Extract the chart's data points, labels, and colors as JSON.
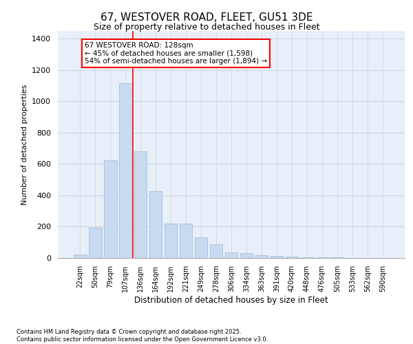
{
  "title_line1": "67, WESTOVER ROAD, FLEET, GU51 3DE",
  "title_line2": "Size of property relative to detached houses in Fleet",
  "xlabel": "Distribution of detached houses by size in Fleet",
  "ylabel": "Number of detached properties",
  "categories": [
    "22sqm",
    "50sqm",
    "79sqm",
    "107sqm",
    "136sqm",
    "164sqm",
    "192sqm",
    "221sqm",
    "249sqm",
    "278sqm",
    "306sqm",
    "334sqm",
    "363sqm",
    "391sqm",
    "420sqm",
    "448sqm",
    "476sqm",
    "505sqm",
    "533sqm",
    "562sqm",
    "590sqm"
  ],
  "values": [
    20,
    195,
    625,
    1115,
    680,
    425,
    220,
    220,
    130,
    90,
    35,
    30,
    18,
    15,
    8,
    5,
    5,
    3,
    1,
    0,
    0
  ],
  "bar_color": "#c8daf0",
  "bar_edge_color": "#9ab8d8",
  "grid_color": "#ccd6e8",
  "background_color": "#e8eff8",
  "vline_color": "red",
  "annotation_text": "67 WESTOVER ROAD: 128sqm\n← 45% of detached houses are smaller (1,598)\n54% of semi-detached houses are larger (1,894) →",
  "ylim": [
    0,
    1450
  ],
  "yticks": [
    0,
    200,
    400,
    600,
    800,
    1000,
    1200,
    1400
  ],
  "footer_line1": "Contains HM Land Registry data © Crown copyright and database right 2025.",
  "footer_line2": "Contains public sector information licensed under the Open Government Licence v3.0."
}
